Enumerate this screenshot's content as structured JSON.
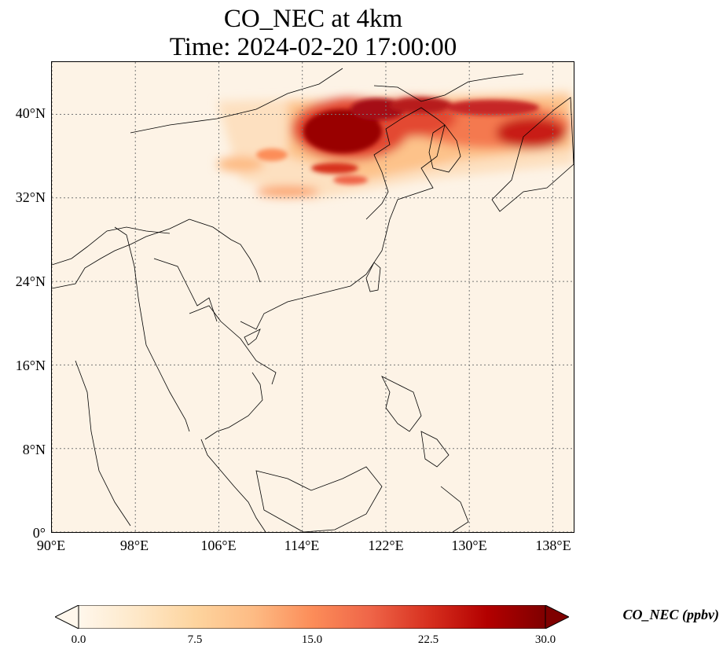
{
  "title": {
    "line1": "CO_NEC at 4km",
    "line2": "Time: 2024-02-20 17:00:00"
  },
  "map": {
    "extent_lon": [
      90,
      140
    ],
    "extent_lat": [
      0,
      45
    ],
    "lat_ticks": [
      {
        "value": 0,
        "label": "0°"
      },
      {
        "value": 8,
        "label": "8°N"
      },
      {
        "value": 16,
        "label": "16°N"
      },
      {
        "value": 24,
        "label": "24°N"
      },
      {
        "value": 32,
        "label": "32°N"
      },
      {
        "value": 40,
        "label": "40°N"
      }
    ],
    "lon_ticks": [
      {
        "value": 90,
        "label": "90°E"
      },
      {
        "value": 98,
        "label": "98°E"
      },
      {
        "value": 106,
        "label": "106°E"
      },
      {
        "value": 114,
        "label": "114°E"
      },
      {
        "value": 122,
        "label": "122°E"
      },
      {
        "value": 130,
        "label": "130°E"
      },
      {
        "value": 138,
        "label": "138°E"
      }
    ],
    "gridlines": true
  },
  "colorbar": {
    "label": "CO_NEC (ppbv)",
    "ticks": [
      "0.0",
      "7.5",
      "15.0",
      "22.5",
      "30.0"
    ],
    "range": [
      0,
      30
    ],
    "colormap": "OrRd",
    "colors": [
      "#fff7ec",
      "#fee8c8",
      "#fdd49e",
      "#fdbb84",
      "#fc8d59",
      "#ef6548",
      "#d7301f",
      "#b30000",
      "#7f0000"
    ]
  }
}
